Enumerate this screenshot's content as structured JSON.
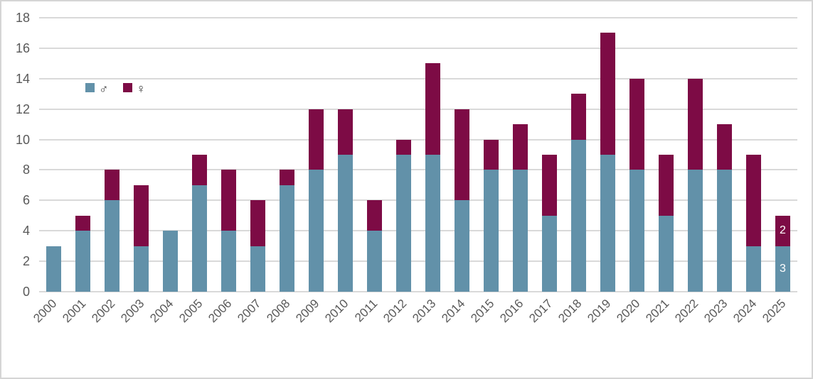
{
  "chart_data": {
    "type": "bar",
    "stacked": true,
    "title": "",
    "xlabel": "",
    "ylabel": "",
    "categories": [
      "2000",
      "2001",
      "2002",
      "2003",
      "2004",
      "2005",
      "2006",
      "2007",
      "2008",
      "2009",
      "2010",
      "2011",
      "2012",
      "2013",
      "2014",
      "2015",
      "2016",
      "2017",
      "2018",
      "2019",
      "2020",
      "2021",
      "2022",
      "2023",
      "2024",
      "2025"
    ],
    "series": [
      {
        "name": "male",
        "legend_label": "♂",
        "color": "#6291a9",
        "values": [
          3,
          4,
          6,
          3,
          4,
          7,
          4,
          3,
          7,
          8,
          9,
          4,
          9,
          9,
          6,
          8,
          8,
          5,
          10,
          9,
          8,
          5,
          8,
          8,
          3,
          3
        ]
      },
      {
        "name": "female",
        "legend_label": "♀",
        "color": "#7d0b45",
        "values": [
          0,
          1,
          2,
          4,
          0,
          2,
          4,
          3,
          1,
          4,
          3,
          2,
          1,
          6,
          6,
          2,
          3,
          4,
          3,
          8,
          6,
          4,
          6,
          3,
          6,
          2
        ]
      }
    ],
    "totals": [
      3,
      5,
      8,
      7,
      4,
      9,
      8,
      6,
      8,
      12,
      12,
      6,
      10,
      15,
      12,
      10,
      11,
      9,
      13,
      17,
      14,
      9,
      14,
      11,
      9,
      5
    ],
    "data_labels": [
      {
        "category": "2025",
        "series": "male",
        "text": "3"
      },
      {
        "category": "2025",
        "series": "female",
        "text": "2"
      }
    ],
    "y_axis": {
      "min": 0,
      "max": 18,
      "step": 2,
      "tick_labels": [
        "0",
        "2",
        "4",
        "6",
        "8",
        "10",
        "12",
        "14",
        "16",
        "18"
      ]
    },
    "legend": {
      "position": "inside-top-left"
    },
    "grid": true,
    "colors": {
      "gridline": "#d9d9d9",
      "axis_text": "#595959",
      "frame_border": "#d5d5d5",
      "data_label_text": "#ffffff"
    }
  }
}
